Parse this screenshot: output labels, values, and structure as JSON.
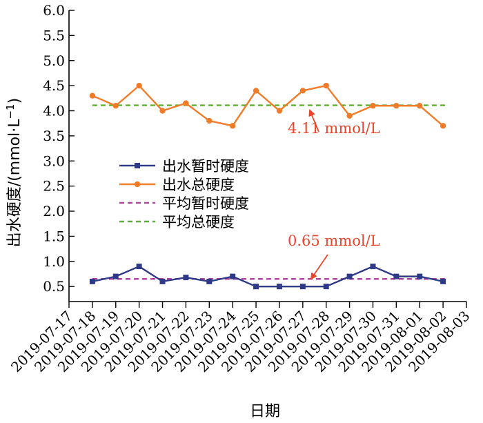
{
  "chart_data": {
    "type": "line",
    "xlabel": "日期",
    "ylabel_main": "出水硬度/(mmol·L",
    "ylabel_sup": "−1",
    "ylabel_close": ")",
    "x": [
      "2019-07-17",
      "2019-07-18",
      "2019-07-19",
      "2019-07-20",
      "2019-07-21",
      "2019-07-22",
      "2019-07-23",
      "2019-07-24",
      "2019-07-25",
      "2019-07-26",
      "2019-07-27",
      "2019-07-28",
      "2019-07-29",
      "2019-07-30",
      "2019-07-31",
      "2019-08-01",
      "2019-08-02",
      "2019-08-03"
    ],
    "ylim": [
      0.2,
      6.0
    ],
    "yticks": [
      "0.5",
      "1.0",
      "1.5",
      "2.0",
      "2.5",
      "3.0",
      "3.5",
      "4.0",
      "4.5",
      "5.0",
      "5.5",
      "6.0"
    ],
    "series": [
      {
        "name": "出水暂时硬度",
        "color": "#2e3a87",
        "marker": "square",
        "x": [
          "2019-07-18",
          "2019-07-19",
          "2019-07-20",
          "2019-07-21",
          "2019-07-22",
          "2019-07-23",
          "2019-07-24",
          "2019-07-25",
          "2019-07-26",
          "2019-07-27",
          "2019-07-28",
          "2019-07-29",
          "2019-07-30",
          "2019-07-31",
          "2019-08-01",
          "2019-08-02"
        ],
        "values": [
          0.6,
          0.7,
          0.9,
          0.6,
          0.68,
          0.6,
          0.7,
          0.5,
          0.5,
          0.5,
          0.5,
          0.7,
          0.9,
          0.7,
          0.7,
          0.6
        ]
      },
      {
        "name": "出水总硬度",
        "color": "#f07c2a",
        "marker": "circle",
        "x": [
          "2019-07-18",
          "2019-07-19",
          "2019-07-20",
          "2019-07-21",
          "2019-07-22",
          "2019-07-23",
          "2019-07-24",
          "2019-07-25",
          "2019-07-26",
          "2019-07-27",
          "2019-07-28",
          "2019-07-29",
          "2019-07-30",
          "2019-07-31",
          "2019-08-01",
          "2019-08-02"
        ],
        "values": [
          4.3,
          4.1,
          4.5,
          4.0,
          4.15,
          3.8,
          3.7,
          4.4,
          4.0,
          4.4,
          4.5,
          3.9,
          4.1,
          4.1,
          4.1,
          3.7
        ]
      }
    ],
    "reference_lines": [
      {
        "name": "平均暂时硬度",
        "color": "#b0479f",
        "value": 0.65,
        "dash": "dashed"
      },
      {
        "name": "平均总硬度",
        "color": "#5cb030",
        "value": 4.11,
        "dash": "dashed"
      }
    ],
    "annotations": [
      {
        "text": "4.11 mmol/L",
        "color": "#e8452c"
      },
      {
        "text": "0.65 mmol/L",
        "color": "#e8452c"
      }
    ],
    "legend_position": "center-left"
  }
}
